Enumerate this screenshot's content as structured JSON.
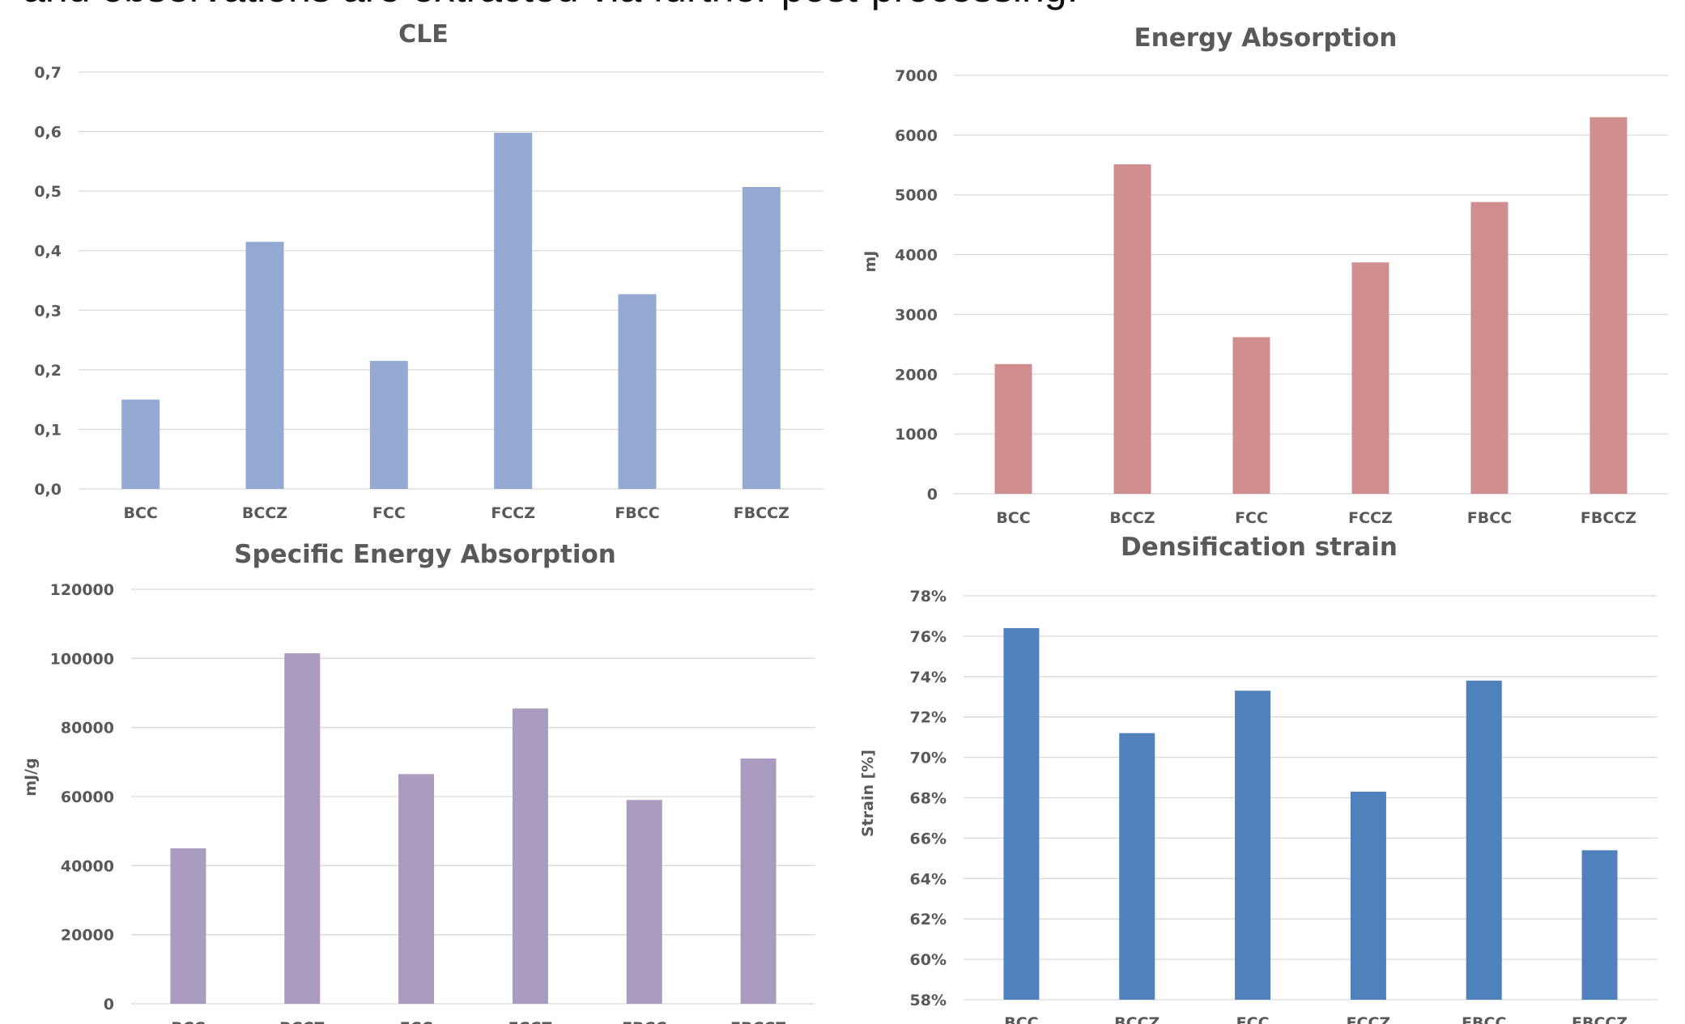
{
  "header": {
    "text": "and observations are extracted via further post-processing."
  },
  "chart_data": [
    {
      "type": "bar",
      "title": "CLE",
      "ylabel": "",
      "categories": [
        "BCC",
        "BCCZ",
        "FCC",
        "FCCZ",
        "FBCC",
        "FBCCZ"
      ],
      "values": [
        0.15,
        0.415,
        0.215,
        0.598,
        0.327,
        0.507
      ],
      "ylim": [
        0,
        0.7
      ],
      "yticks": [
        "0,0",
        "0,1",
        "0,2",
        "0,3",
        "0,4",
        "0,5",
        "0,6",
        "0,7"
      ],
      "color": "#95aad3",
      "grid": true
    },
    {
      "type": "bar",
      "title": "Energy Absorption",
      "ylabel": "mJ",
      "categories": [
        "BCC",
        "BCCZ",
        "FCC",
        "FCCZ",
        "FBCC",
        "FBCCZ"
      ],
      "values": [
        2170,
        5510,
        2620,
        3870,
        4880,
        6300
      ],
      "ylim": [
        0,
        7000
      ],
      "yticks": [
        "0",
        "1000",
        "2000",
        "3000",
        "4000",
        "5000",
        "6000",
        "7000"
      ],
      "color": "#d08f8e",
      "grid": true
    },
    {
      "type": "bar",
      "title": "Specific Energy Absorption",
      "ylabel": "mJ/g",
      "categories": [
        "BCC",
        "BCCZ",
        "FCC",
        "FCCZ",
        "FBCC",
        "FBCCZ"
      ],
      "values": [
        45000,
        101500,
        66500,
        85500,
        59000,
        71000
      ],
      "ylim": [
        0,
        120000
      ],
      "yticks": [
        "0",
        "20000",
        "40000",
        "60000",
        "80000",
        "100000",
        "120000"
      ],
      "color": "#a99cc0",
      "grid": true
    },
    {
      "type": "bar",
      "title": "Densification strain",
      "ylabel": "Strain [%]",
      "categories": [
        "BCC",
        "BCCZ",
        "FCC",
        "FCCZ",
        "FBCC",
        "FBCCZ"
      ],
      "values": [
        76.4,
        71.2,
        73.3,
        68.3,
        73.8,
        65.4
      ],
      "ylim": [
        58,
        78
      ],
      "yticks": [
        "58%",
        "60%",
        "62%",
        "64%",
        "66%",
        "68%",
        "70%",
        "72%",
        "74%",
        "76%",
        "78%"
      ],
      "color": "#4f81bd",
      "grid": true
    }
  ]
}
